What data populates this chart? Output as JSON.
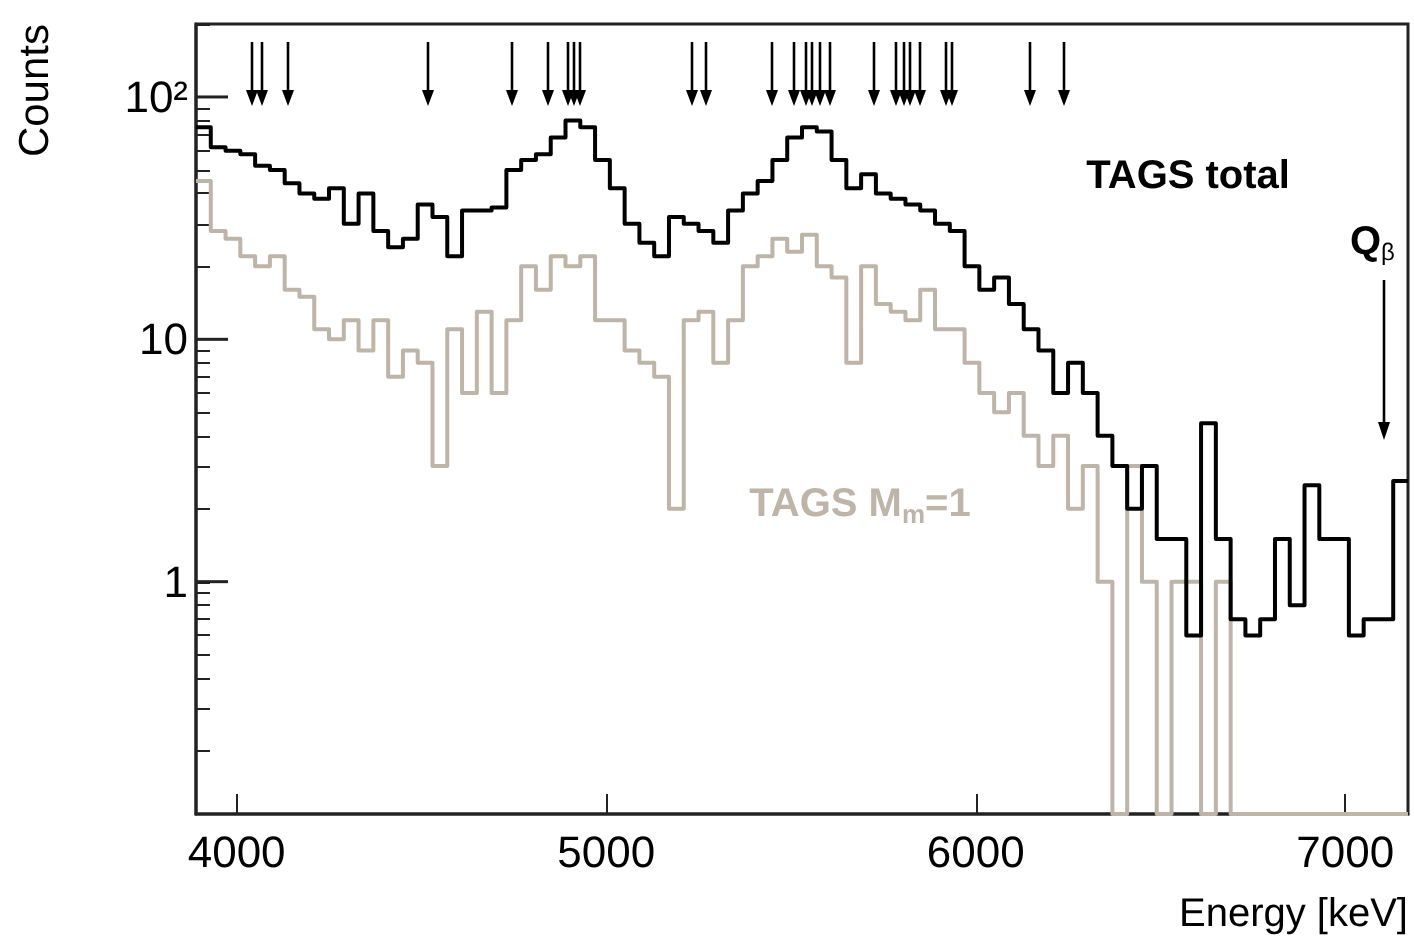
{
  "chart_data": {
    "type": "histogram",
    "xlabel": "Energy [keV]",
    "ylabel": "Counts",
    "bins": [
      3890,
      3930,
      3970,
      4010,
      4050,
      4090,
      4130,
      4170,
      4210,
      4250,
      4290,
      4330,
      4370,
      4410,
      4450,
      4490,
      4530,
      4570,
      4610,
      4650,
      4690,
      4730,
      4770,
      4810,
      4850,
      4890,
      4930,
      4970,
      5010,
      5050,
      5090,
      5130,
      5170,
      5210,
      5250,
      5290,
      5330,
      5370,
      5410,
      5450,
      5490,
      5530,
      5570,
      5610,
      5650,
      5690,
      5730,
      5770,
      5810,
      5850,
      5890,
      5930,
      5970,
      6010,
      6050,
      6090,
      6130,
      6170,
      6210,
      6250,
      6290,
      6330,
      6370,
      6410,
      6450,
      6490,
      6530,
      6570,
      6610,
      6650,
      6690,
      6730,
      6770,
      6810,
      6850,
      6890,
      6930,
      6970,
      7010,
      7050,
      7090,
      7130,
      7170
    ],
    "series": [
      {
        "name": "TAGS total",
        "color": "#000000",
        "values": [
          75,
          62,
          60,
          58,
          52,
          50,
          44,
          40,
          38,
          42,
          30,
          40,
          28,
          24,
          26,
          36,
          32,
          22,
          34,
          34,
          35,
          50,
          55,
          58,
          68,
          80,
          75,
          55,
          42,
          30,
          25,
          22,
          32,
          30,
          28,
          25,
          34,
          40,
          45,
          55,
          68,
          75,
          72,
          55,
          42,
          48,
          40,
          38,
          36,
          34,
          30,
          28,
          20,
          16,
          18,
          14,
          11,
          9,
          6,
          8,
          6,
          4,
          3,
          2,
          3,
          1.5,
          1.5,
          0.6,
          4.5,
          1.5,
          0.7,
          0.6,
          0.7,
          1.5,
          0.8,
          2.5,
          1.5,
          1.5,
          0.6,
          0.7,
          0.7,
          2.6
        ]
      },
      {
        "name": "TAGS M$_{m}$=1",
        "color": "#bfb4a8",
        "values": [
          45,
          28,
          26,
          22,
          20,
          22,
          16,
          15,
          11,
          10,
          12,
          9,
          12,
          7,
          9,
          8,
          3,
          11,
          6,
          13,
          6,
          12,
          20,
          16,
          22,
          20,
          22,
          12,
          12,
          9,
          8,
          7,
          2,
          12,
          13,
          8,
          12,
          20,
          22,
          26,
          23,
          27,
          20,
          18,
          8,
          20,
          14,
          13,
          12,
          16,
          11,
          11,
          8,
          6,
          5,
          6,
          4,
          3,
          4,
          2,
          3,
          1,
          null,
          3,
          1,
          null,
          1,
          1,
          null,
          1,
          null,
          null,
          null,
          null,
          null,
          null,
          null,
          null,
          null,
          null,
          null,
          null
        ]
      }
    ],
    "xlim": [
      3890,
      7170
    ],
    "xticks": [
      4000,
      5000,
      6000,
      7000
    ],
    "ylim": [
      0.11,
      200
    ],
    "log": true,
    "yticks": [
      {
        "value": 0.2,
        "label": null
      },
      {
        "value": 0.3,
        "label": null
      },
      {
        "value": 0.4,
        "label": null
      },
      {
        "value": 0.5,
        "label": null
      },
      {
        "value": 0.6,
        "label": null
      },
      {
        "value": 0.7,
        "label": null
      },
      {
        "value": 0.8,
        "label": null
      },
      {
        "value": 0.9,
        "label": null
      },
      {
        "value": 1,
        "label": "1"
      },
      {
        "value": 2,
        "label": null
      },
      {
        "value": 3,
        "label": null
      },
      {
        "value": 4,
        "label": null
      },
      {
        "value": 5,
        "label": null
      },
      {
        "value": 6,
        "label": null
      },
      {
        "value": 7,
        "label": null
      },
      {
        "value": 8,
        "label": null
      },
      {
        "value": 9,
        "label": null
      },
      {
        "value": 10,
        "label": "10"
      },
      {
        "value": 20,
        "label": null
      },
      {
        "value": 30,
        "label": null
      },
      {
        "value": 40,
        "label": null
      },
      {
        "value": 50,
        "label": null
      },
      {
        "value": 60,
        "label": null
      },
      {
        "value": 70,
        "label": null
      },
      {
        "value": 80,
        "label": null
      },
      {
        "value": 90,
        "label": null
      },
      {
        "value": 100,
        "label": "10²"
      },
      {
        "value": 200,
        "label": null
      }
    ],
    "annotations": [
      "Q$_{β}$"
    ],
    "legend": "top right"
  }
}
